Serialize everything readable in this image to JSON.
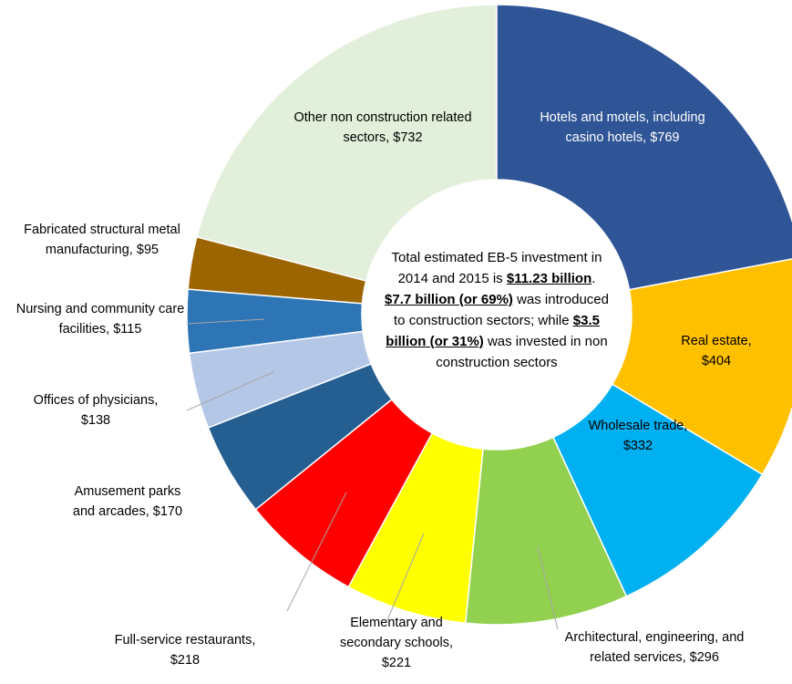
{
  "chart_data": {
    "type": "donut",
    "categories": [
      "Hotels and motels, including casino hotels,",
      "Real estate,",
      "Wholesale trade,",
      "Architectural, engineering, and related services,",
      "Elementary and secondary schools,",
      "Full-service restaurants,",
      "Amusement parks and arcades,",
      "Offices of physicians,",
      "Nursing and community care facilities,",
      "Fabricated structural metal manufacturing,",
      "Other non construction related sectors,"
    ],
    "values": [
      769,
      404,
      332,
      296,
      221,
      218,
      170,
      138,
      115,
      95,
      732
    ],
    "value_labels": [
      "$769",
      "$404",
      "$332",
      "$296",
      "$221",
      "$218",
      "$170",
      "$138",
      "$115",
      "$95",
      "$732"
    ],
    "colors": [
      "#2f5597",
      "#ffc000",
      "#00b0f0",
      "#92d050",
      "#ffff00",
      "#ff0000",
      "#255e91",
      "#b4c7e7",
      "#2e75b6",
      "#9c6500",
      "#e2efda"
    ],
    "annotation": [
      {
        "text": "Total estimated EB-5 investment in 2014 and 2015 is ",
        "emphasis": false
      },
      {
        "text": "$11.23 billion",
        "emphasis": true
      },
      {
        "text": ". ",
        "emphasis": false
      },
      {
        "text": "$7.7 billion (or 69%)",
        "emphasis": true
      },
      {
        "text": " was introduced to construction sectors; while ",
        "emphasis": false
      },
      {
        "text": "$3.5 billion (or 31%)",
        "emphasis": true
      },
      {
        "text": " was invested in non construction sectors",
        "emphasis": false
      }
    ]
  }
}
